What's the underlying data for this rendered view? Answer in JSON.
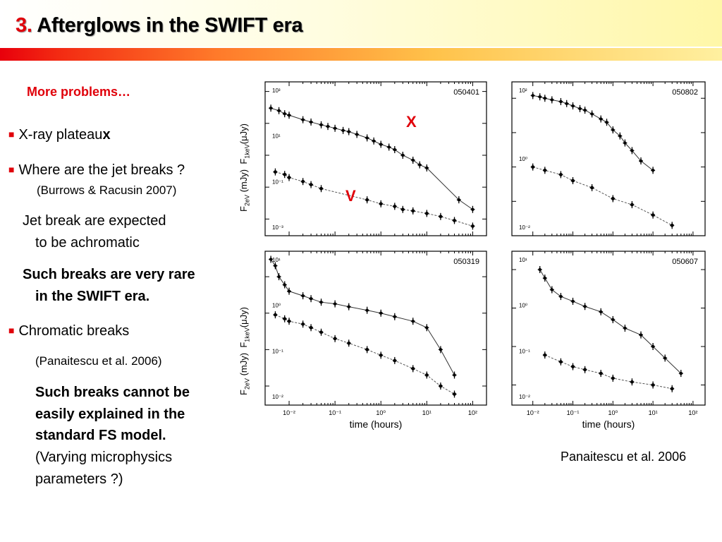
{
  "slide": {
    "title_number": "3.",
    "title_text": "Afterglows in the SWIFT era"
  },
  "left": {
    "heading": "More problems…",
    "b1_text": "X-ray plateau",
    "b1_bold": "x",
    "b2_text": "Where are the jet breaks ?",
    "b2_ref": "(Burrows & Racusin 2007)",
    "jb_line1": "Jet break are expected",
    "jb_line2": "to be achromatic",
    "rare_line1": "Such breaks are very rare",
    "rare_line2": "in the SWIFT era.",
    "b3_text": "Chromatic breaks",
    "b3_ref": "(Panaitescu et al. 2006)",
    "fs_line1": "Such breaks cannot be",
    "fs_line2": "easily explained in the",
    "fs_line3": "standard FS model.",
    "fs_line4": "(Varying microphysics",
    "fs_line5": "parameters ?)"
  },
  "figure": {
    "label_x": "X",
    "label_v": "V",
    "caption": "Panaitescu et al. 2006",
    "xlabel": "time (hours)",
    "ylabel_x_band": "F",
    "ylabel_x_sub": "1keV",
    "ylabel_unit_x": "(μJy)",
    "ylabel_o_band": "F",
    "ylabel_o_sub": "2eV",
    "ylabel_unit_o": "(mJy)",
    "x_ticks": [
      "10⁻²",
      "10⁻¹",
      "10⁰",
      "10¹",
      "10²"
    ],
    "colors": {
      "accent": "#e0000a"
    }
  },
  "chart_data": [
    {
      "type": "scatter",
      "title": "050401",
      "xscale": "log",
      "yscale": "log",
      "xlim": [
        0.003,
        200
      ],
      "ylim": [
        0.0003,
        20
      ],
      "y_ticks_left": [
        "10⁻³",
        "10⁻¹",
        "10¹",
        "10³"
      ],
      "series": [
        {
          "kind": "x-ray",
          "x": [
            0.004,
            0.006,
            0.008,
            0.01,
            0.02,
            0.03,
            0.05,
            0.07,
            0.1,
            0.15,
            0.2,
            0.3,
            0.5,
            0.7,
            1,
            1.5,
            2,
            3,
            5,
            7,
            10,
            50,
            100
          ],
          "y": [
            3,
            2.5,
            2,
            1.8,
            1.3,
            1.1,
            0.9,
            0.8,
            0.7,
            0.6,
            0.55,
            0.45,
            0.35,
            0.28,
            0.22,
            0.18,
            0.15,
            0.1,
            0.07,
            0.05,
            0.04,
            0.004,
            0.002
          ]
        },
        {
          "kind": "optical",
          "x": [
            0.005,
            0.008,
            0.01,
            0.02,
            0.03,
            0.05,
            0.5,
            1,
            2,
            3,
            5,
            10,
            20,
            40,
            100
          ],
          "y": [
            0.03,
            0.025,
            0.02,
            0.015,
            0.012,
            0.009,
            0.004,
            0.003,
            0.0025,
            0.002,
            0.0018,
            0.0015,
            0.0012,
            0.0009,
            0.0006
          ]
        }
      ]
    },
    {
      "type": "scatter",
      "title": "050802",
      "xscale": "log",
      "yscale": "log",
      "xlim": [
        0.003,
        200
      ],
      "ylim": [
        0.001,
        30
      ],
      "y_ticks_left": [
        "10⁻²",
        "10⁰",
        "10²"
      ],
      "series": [
        {
          "kind": "x-ray",
          "x": [
            0.01,
            0.015,
            0.02,
            0.03,
            0.05,
            0.07,
            0.1,
            0.15,
            0.2,
            0.3,
            0.5,
            0.7,
            1,
            1.5,
            2,
            3,
            5,
            10
          ],
          "y": [
            12,
            11,
            10,
            9,
            8,
            7,
            6,
            5,
            4.5,
            3.5,
            2.5,
            2,
            1.2,
            0.8,
            0.5,
            0.3,
            0.15,
            0.08
          ]
        },
        {
          "kind": "optical",
          "x": [
            0.01,
            0.02,
            0.05,
            0.1,
            0.3,
            1,
            3,
            10,
            30
          ],
          "y": [
            0.1,
            0.08,
            0.06,
            0.04,
            0.025,
            0.012,
            0.008,
            0.004,
            0.002
          ]
        }
      ]
    },
    {
      "type": "scatter",
      "title": "050319",
      "xscale": "log",
      "yscale": "log",
      "xlim": [
        0.003,
        200
      ],
      "ylim": [
        0.003,
        50
      ],
      "y_ticks_left": [
        "10⁻²",
        "10⁻¹",
        "10⁰",
        "10¹"
      ],
      "series": [
        {
          "kind": "x-ray",
          "x": [
            0.004,
            0.005,
            0.006,
            0.008,
            0.01,
            0.02,
            0.03,
            0.05,
            0.1,
            0.2,
            0.5,
            1,
            2,
            5,
            10,
            20,
            40
          ],
          "y": [
            30,
            20,
            10,
            6,
            4,
            3,
            2.5,
            2,
            1.8,
            1.5,
            1.2,
            1,
            0.8,
            0.6,
            0.4,
            0.1,
            0.02
          ]
        },
        {
          "kind": "optical",
          "x": [
            0.005,
            0.008,
            0.01,
            0.02,
            0.03,
            0.05,
            0.1,
            0.2,
            0.5,
            1,
            2,
            5,
            10,
            20,
            40
          ],
          "y": [
            0.9,
            0.7,
            0.6,
            0.5,
            0.4,
            0.3,
            0.2,
            0.15,
            0.1,
            0.07,
            0.05,
            0.03,
            0.02,
            0.01,
            0.006
          ]
        }
      ]
    },
    {
      "type": "scatter",
      "title": "050607",
      "xscale": "log",
      "yscale": "log",
      "xlim": [
        0.003,
        200
      ],
      "ylim": [
        0.003,
        30
      ],
      "y_ticks_left": [
        "10⁻²",
        "10⁻¹",
        "10⁰",
        "10¹"
      ],
      "series": [
        {
          "kind": "x-ray",
          "x": [
            0.015,
            0.02,
            0.03,
            0.05,
            0.1,
            0.2,
            0.5,
            1,
            2,
            5,
            10,
            20,
            50
          ],
          "y": [
            10,
            6,
            3,
            2,
            1.5,
            1.1,
            0.8,
            0.5,
            0.3,
            0.2,
            0.1,
            0.05,
            0.02
          ]
        },
        {
          "kind": "optical",
          "x": [
            0.02,
            0.05,
            0.1,
            0.2,
            0.5,
            1,
            3,
            10,
            30
          ],
          "y": [
            0.06,
            0.04,
            0.03,
            0.025,
            0.02,
            0.015,
            0.012,
            0.01,
            0.008
          ]
        }
      ]
    }
  ]
}
